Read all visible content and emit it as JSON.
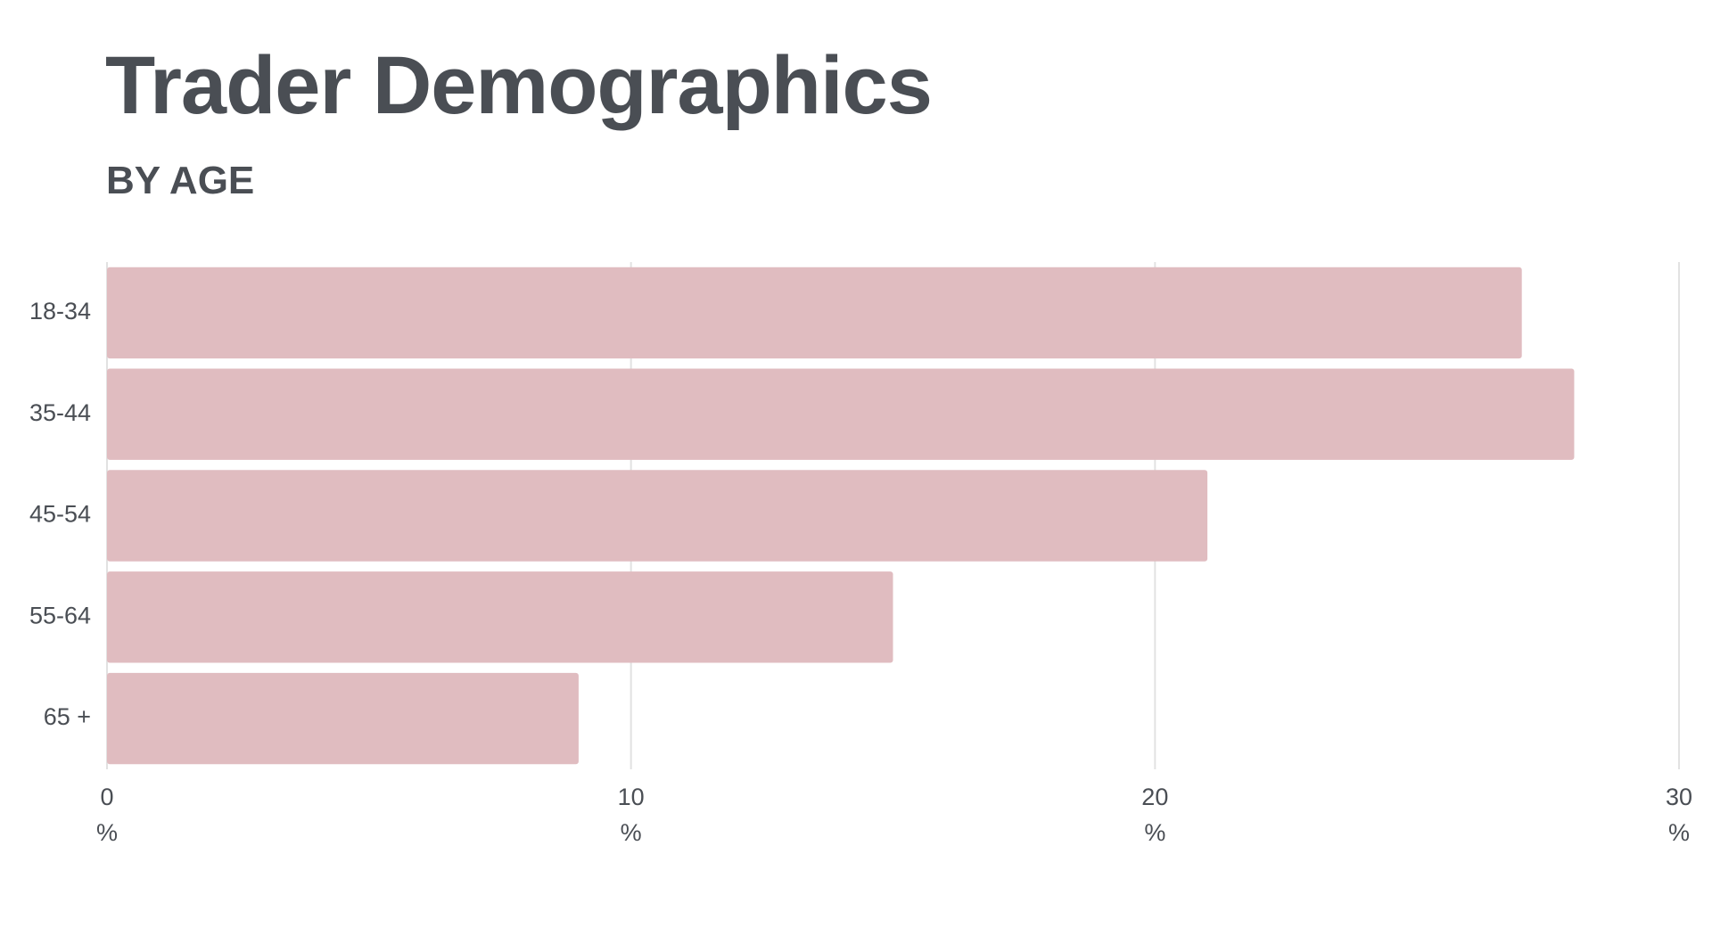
{
  "chart_data": {
    "type": "bar",
    "orientation": "horizontal",
    "title": "Trader Demographics",
    "subtitle": "BY AGE",
    "categories": [
      "18-34",
      "35-44",
      "45-54",
      "55-64",
      "65 +"
    ],
    "values": [
      27,
      28,
      21,
      15,
      9
    ],
    "color": "#e0bcc0",
    "xlim": [
      0,
      30
    ],
    "xticks": [
      {
        "value": 0,
        "label": "0\n%"
      },
      {
        "value": 10,
        "label": "10\n%"
      },
      {
        "value": 20,
        "label": "20\n%"
      },
      {
        "value": 30,
        "label": "30\n%"
      }
    ],
    "grid": true
  }
}
